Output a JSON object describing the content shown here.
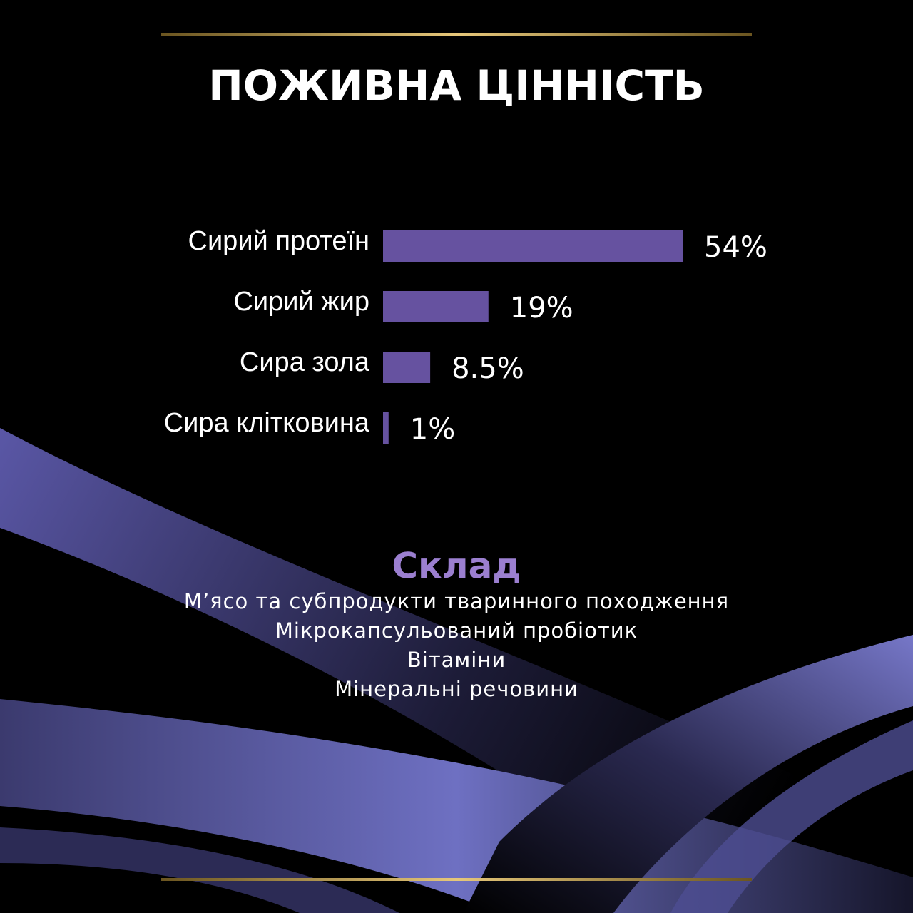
{
  "chart_data": {
    "type": "bar",
    "orientation": "horizontal",
    "title": "ПОЖИВНА ЦІННІСТЬ",
    "categories": [
      "Сирий протеїн",
      "Сирий жир",
      "Сира зола",
      "Сира клітковина"
    ],
    "values": [
      54,
      19,
      8.5,
      1
    ],
    "value_labels": [
      "54%",
      "19%",
      "8.5%",
      "1%"
    ],
    "color": "#6652a0"
  },
  "composition": {
    "title": "Склад",
    "items": [
      "М’ясо та субпродукти тваринного походження",
      "Мікрокапсульований пробіотик",
      "Вітаміни",
      "Мінеральні речовини"
    ]
  }
}
